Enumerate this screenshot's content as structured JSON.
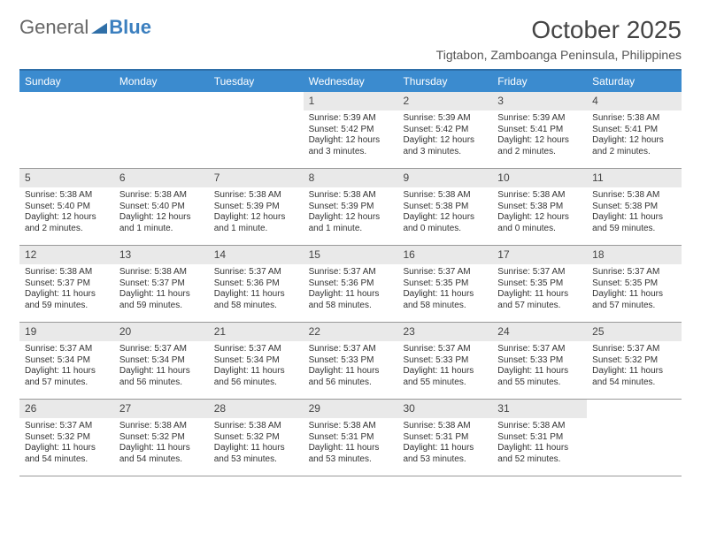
{
  "logo": {
    "part1": "General",
    "part2": "Blue"
  },
  "title": "October 2025",
  "location": "Tigtabon, Zamboanga Peninsula, Philippines",
  "dayHeaders": [
    "Sunday",
    "Monday",
    "Tuesday",
    "Wednesday",
    "Thursday",
    "Friday",
    "Saturday"
  ],
  "colors": {
    "header_bg": "#3b8bcf",
    "header_border": "#2f6fa8",
    "daynum_bg": "#e9e9e9",
    "week_border": "#999999",
    "text": "#333333",
    "logo_blue": "#3b7fbf"
  },
  "weeks": [
    [
      {
        "day": "",
        "sunrise": "",
        "sunset": "",
        "daylight": ""
      },
      {
        "day": "",
        "sunrise": "",
        "sunset": "",
        "daylight": ""
      },
      {
        "day": "",
        "sunrise": "",
        "sunset": "",
        "daylight": ""
      },
      {
        "day": "1",
        "sunrise": "Sunrise: 5:39 AM",
        "sunset": "Sunset: 5:42 PM",
        "daylight": "Daylight: 12 hours and 3 minutes."
      },
      {
        "day": "2",
        "sunrise": "Sunrise: 5:39 AM",
        "sunset": "Sunset: 5:42 PM",
        "daylight": "Daylight: 12 hours and 3 minutes."
      },
      {
        "day": "3",
        "sunrise": "Sunrise: 5:39 AM",
        "sunset": "Sunset: 5:41 PM",
        "daylight": "Daylight: 12 hours and 2 minutes."
      },
      {
        "day": "4",
        "sunrise": "Sunrise: 5:38 AM",
        "sunset": "Sunset: 5:41 PM",
        "daylight": "Daylight: 12 hours and 2 minutes."
      }
    ],
    [
      {
        "day": "5",
        "sunrise": "Sunrise: 5:38 AM",
        "sunset": "Sunset: 5:40 PM",
        "daylight": "Daylight: 12 hours and 2 minutes."
      },
      {
        "day": "6",
        "sunrise": "Sunrise: 5:38 AM",
        "sunset": "Sunset: 5:40 PM",
        "daylight": "Daylight: 12 hours and 1 minute."
      },
      {
        "day": "7",
        "sunrise": "Sunrise: 5:38 AM",
        "sunset": "Sunset: 5:39 PM",
        "daylight": "Daylight: 12 hours and 1 minute."
      },
      {
        "day": "8",
        "sunrise": "Sunrise: 5:38 AM",
        "sunset": "Sunset: 5:39 PM",
        "daylight": "Daylight: 12 hours and 1 minute."
      },
      {
        "day": "9",
        "sunrise": "Sunrise: 5:38 AM",
        "sunset": "Sunset: 5:38 PM",
        "daylight": "Daylight: 12 hours and 0 minutes."
      },
      {
        "day": "10",
        "sunrise": "Sunrise: 5:38 AM",
        "sunset": "Sunset: 5:38 PM",
        "daylight": "Daylight: 12 hours and 0 minutes."
      },
      {
        "day": "11",
        "sunrise": "Sunrise: 5:38 AM",
        "sunset": "Sunset: 5:38 PM",
        "daylight": "Daylight: 11 hours and 59 minutes."
      }
    ],
    [
      {
        "day": "12",
        "sunrise": "Sunrise: 5:38 AM",
        "sunset": "Sunset: 5:37 PM",
        "daylight": "Daylight: 11 hours and 59 minutes."
      },
      {
        "day": "13",
        "sunrise": "Sunrise: 5:38 AM",
        "sunset": "Sunset: 5:37 PM",
        "daylight": "Daylight: 11 hours and 59 minutes."
      },
      {
        "day": "14",
        "sunrise": "Sunrise: 5:37 AM",
        "sunset": "Sunset: 5:36 PM",
        "daylight": "Daylight: 11 hours and 58 minutes."
      },
      {
        "day": "15",
        "sunrise": "Sunrise: 5:37 AM",
        "sunset": "Sunset: 5:36 PM",
        "daylight": "Daylight: 11 hours and 58 minutes."
      },
      {
        "day": "16",
        "sunrise": "Sunrise: 5:37 AM",
        "sunset": "Sunset: 5:35 PM",
        "daylight": "Daylight: 11 hours and 58 minutes."
      },
      {
        "day": "17",
        "sunrise": "Sunrise: 5:37 AM",
        "sunset": "Sunset: 5:35 PM",
        "daylight": "Daylight: 11 hours and 57 minutes."
      },
      {
        "day": "18",
        "sunrise": "Sunrise: 5:37 AM",
        "sunset": "Sunset: 5:35 PM",
        "daylight": "Daylight: 11 hours and 57 minutes."
      }
    ],
    [
      {
        "day": "19",
        "sunrise": "Sunrise: 5:37 AM",
        "sunset": "Sunset: 5:34 PM",
        "daylight": "Daylight: 11 hours and 57 minutes."
      },
      {
        "day": "20",
        "sunrise": "Sunrise: 5:37 AM",
        "sunset": "Sunset: 5:34 PM",
        "daylight": "Daylight: 11 hours and 56 minutes."
      },
      {
        "day": "21",
        "sunrise": "Sunrise: 5:37 AM",
        "sunset": "Sunset: 5:34 PM",
        "daylight": "Daylight: 11 hours and 56 minutes."
      },
      {
        "day": "22",
        "sunrise": "Sunrise: 5:37 AM",
        "sunset": "Sunset: 5:33 PM",
        "daylight": "Daylight: 11 hours and 56 minutes."
      },
      {
        "day": "23",
        "sunrise": "Sunrise: 5:37 AM",
        "sunset": "Sunset: 5:33 PM",
        "daylight": "Daylight: 11 hours and 55 minutes."
      },
      {
        "day": "24",
        "sunrise": "Sunrise: 5:37 AM",
        "sunset": "Sunset: 5:33 PM",
        "daylight": "Daylight: 11 hours and 55 minutes."
      },
      {
        "day": "25",
        "sunrise": "Sunrise: 5:37 AM",
        "sunset": "Sunset: 5:32 PM",
        "daylight": "Daylight: 11 hours and 54 minutes."
      }
    ],
    [
      {
        "day": "26",
        "sunrise": "Sunrise: 5:37 AM",
        "sunset": "Sunset: 5:32 PM",
        "daylight": "Daylight: 11 hours and 54 minutes."
      },
      {
        "day": "27",
        "sunrise": "Sunrise: 5:38 AM",
        "sunset": "Sunset: 5:32 PM",
        "daylight": "Daylight: 11 hours and 54 minutes."
      },
      {
        "day": "28",
        "sunrise": "Sunrise: 5:38 AM",
        "sunset": "Sunset: 5:32 PM",
        "daylight": "Daylight: 11 hours and 53 minutes."
      },
      {
        "day": "29",
        "sunrise": "Sunrise: 5:38 AM",
        "sunset": "Sunset: 5:31 PM",
        "daylight": "Daylight: 11 hours and 53 minutes."
      },
      {
        "day": "30",
        "sunrise": "Sunrise: 5:38 AM",
        "sunset": "Sunset: 5:31 PM",
        "daylight": "Daylight: 11 hours and 53 minutes."
      },
      {
        "day": "31",
        "sunrise": "Sunrise: 5:38 AM",
        "sunset": "Sunset: 5:31 PM",
        "daylight": "Daylight: 11 hours and 52 minutes."
      },
      {
        "day": "",
        "sunrise": "",
        "sunset": "",
        "daylight": ""
      }
    ]
  ]
}
